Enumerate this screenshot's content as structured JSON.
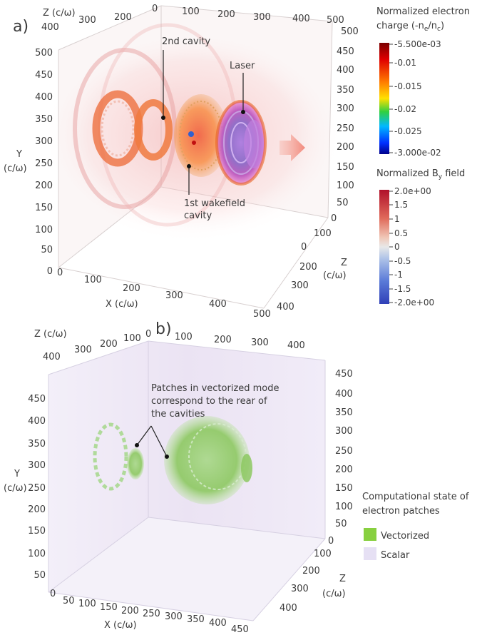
{
  "panel_a": {
    "label": "a)",
    "axes": {
      "top_z_label": "Z (c/ω)",
      "top_z_ticks": [
        "400",
        "300",
        "200",
        "100",
        "0"
      ],
      "top_x_ticks": [
        "100",
        "200",
        "300",
        "400",
        "500"
      ],
      "left_y_title_1": "Y",
      "left_y_title_2": "(c/ω)",
      "left_y_ticks": [
        "500",
        "450",
        "400",
        "350",
        "300",
        "250",
        "200",
        "150",
        "100",
        "50",
        "0"
      ],
      "right_y_ticks": [
        "450",
        "400",
        "350",
        "300",
        "250",
        "200",
        "150",
        "100",
        "50",
        "0"
      ],
      "right_z_ticks": [
        "500",
        "400",
        "300",
        "200",
        "100",
        "0"
      ],
      "right_z_label_1": "Z",
      "right_z_label_2": "(c/ω)",
      "bottom_x_ticks": [
        "0",
        "100",
        "200",
        "300",
        "400",
        "500"
      ],
      "bottom_x_label": "X (c/ω)",
      "corner_bottom": "500"
    },
    "annotations": {
      "second_cavity": "2nd cavity",
      "laser": "Laser",
      "first_cavity_1": "1st wakefield",
      "first_cavity_2": "cavity"
    },
    "colorbar_charge": {
      "title_1": "Normalized electron",
      "title_2": "charge (-n",
      "title_2_sub1": "e",
      "title_2_mid": "/n",
      "title_2_sub2": "c",
      "title_2_end": ")",
      "ticks": [
        "-5.500e-03",
        "-0.01",
        "-0.015",
        "-0.02",
        "-0.025",
        "-3.000e-02"
      ],
      "colors": [
        "#7a0000",
        "#e00000",
        "#ff7a00",
        "#ffe000",
        "#30d040",
        "#00b8ff",
        "#0030ff",
        "#00008a"
      ]
    },
    "colorbar_by": {
      "title": "Normalized B",
      "title_sub": "y",
      "title_end": " field",
      "ticks": [
        "2.0e+00",
        "1.5",
        "1",
        "0.5",
        "0",
        "-0.5",
        "-1",
        "-1.5",
        "-2.0e+00"
      ],
      "colors": [
        "#b0102a",
        "#e06a5a",
        "#f0c0b0",
        "#e8e8e8",
        "#a8c0e8",
        "#5a7ad8",
        "#3040b8"
      ]
    }
  },
  "panel_b": {
    "label": "b)",
    "axes": {
      "top_z_label": "Z (c/ω)",
      "top_z_ticks": [
        "400",
        "300",
        "200",
        "100",
        "0"
      ],
      "top_x_ticks": [
        "100",
        "200",
        "300",
        "400"
      ],
      "left_y_title_1": "Y",
      "left_y_title_2": "(c/ω)",
      "left_y_ticks": [
        "450",
        "400",
        "350",
        "300",
        "250",
        "200",
        "150",
        "100",
        "50",
        "0"
      ],
      "right_y_ticks": [
        "450",
        "400",
        "350",
        "300",
        "250",
        "200",
        "150",
        "100",
        "50",
        "0"
      ],
      "right_z_ticks": [
        "100",
        "200",
        "300",
        "400"
      ],
      "right_z_label_1": "Z",
      "right_z_label_2": "(c/ω)",
      "bottom_x_ticks": [
        "0",
        "50",
        "100",
        "150",
        "200",
        "250",
        "300",
        "350",
        "400",
        "450"
      ],
      "bottom_x_label": "X (c/ω)",
      "corner_zero": "0"
    },
    "annotation": {
      "line1": "Patches in vectorized mode",
      "line2": "correspond to the rear of",
      "line3": "the cavities"
    },
    "legend": {
      "title_1": "Computational state of",
      "title_2": "electron patches",
      "items": [
        {
          "label": "Vectorized",
          "color": "#88d040"
        },
        {
          "label": "Scalar",
          "color": "#e6e0f4"
        }
      ]
    }
  }
}
